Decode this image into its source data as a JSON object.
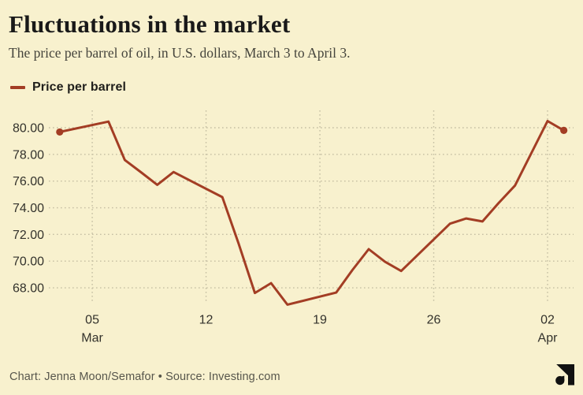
{
  "header": {
    "title": "Fluctuations in the market",
    "subtitle": "The price per barrel of oil, in U.S. dollars, March 3 to April 3."
  },
  "legend": {
    "label": "Price per barrel"
  },
  "footer": {
    "credit": "Chart: Jenna Moon/Semafor • Source: Investing.com",
    "logo_icon": "semafor-logo"
  },
  "colors": {
    "background": "#f8f1ce",
    "line": "#a33d24",
    "grid": "#c5bfa3",
    "title_text": "#191919",
    "subtitle_text": "#45443c",
    "axis_text": "#33322c",
    "footer_text": "#57564c",
    "logo": "#111111"
  },
  "chart_data": {
    "type": "line",
    "title": "Fluctuations in the market",
    "subtitle": "The price per barrel of oil, in U.S. dollars, March 3 to April 3.",
    "xlabel": "",
    "ylabel": "",
    "grid": true,
    "legend_position": "top-left",
    "markers": "first-and-last-point",
    "x_range": [
      "Mar 3",
      "Apr 3"
    ],
    "ylim": [
      66.5,
      81
    ],
    "y_ticks": [
      {
        "value": 80,
        "label": "80.00"
      },
      {
        "value": 78,
        "label": "78.00"
      },
      {
        "value": 76,
        "label": "76.00"
      },
      {
        "value": 74,
        "label": "74.00"
      },
      {
        "value": 72,
        "label": "72.00"
      },
      {
        "value": 70,
        "label": "70.00"
      },
      {
        "value": 68,
        "label": "68.00"
      }
    ],
    "x_ticks": [
      {
        "day": 2,
        "label": "05",
        "month": "Mar"
      },
      {
        "day": 9,
        "label": "12"
      },
      {
        "day": 16,
        "label": "19"
      },
      {
        "day": 23,
        "label": "26"
      },
      {
        "day": 30,
        "label": "02",
        "month": "Apr"
      }
    ],
    "series": [
      {
        "name": "Price per barrel",
        "points": [
          {
            "date": "Mar 3",
            "day": 0,
            "value": 79.68
          },
          {
            "date": "Mar 6",
            "day": 3,
            "value": 80.46
          },
          {
            "date": "Mar 7",
            "day": 4,
            "value": 77.58
          },
          {
            "date": "Mar 8",
            "day": 5,
            "value": 76.66
          },
          {
            "date": "Mar 9",
            "day": 6,
            "value": 75.72
          },
          {
            "date": "Mar 10",
            "day": 7,
            "value": 76.68
          },
          {
            "date": "Mar 13",
            "day": 10,
            "value": 74.8
          },
          {
            "date": "Mar 14",
            "day": 11,
            "value": 71.33
          },
          {
            "date": "Mar 15",
            "day": 12,
            "value": 67.61
          },
          {
            "date": "Mar 16",
            "day": 13,
            "value": 68.35
          },
          {
            "date": "Mar 17",
            "day": 14,
            "value": 66.74
          },
          {
            "date": "Mar 20",
            "day": 17,
            "value": 67.64
          },
          {
            "date": "Mar 21",
            "day": 18,
            "value": 69.33
          },
          {
            "date": "Mar 22",
            "day": 19,
            "value": 70.9
          },
          {
            "date": "Mar 23",
            "day": 20,
            "value": 69.96
          },
          {
            "date": "Mar 24",
            "day": 21,
            "value": 69.26
          },
          {
            "date": "Mar 27",
            "day": 24,
            "value": 72.81
          },
          {
            "date": "Mar 28",
            "day": 25,
            "value": 73.2
          },
          {
            "date": "Mar 29",
            "day": 26,
            "value": 72.97
          },
          {
            "date": "Mar 30",
            "day": 27,
            "value": 74.37
          },
          {
            "date": "Mar 31",
            "day": 28,
            "value": 75.67
          },
          {
            "date": "Apr 2",
            "day": 30,
            "value": 80.5
          },
          {
            "date": "Apr 3",
            "day": 31,
            "value": 79.8
          }
        ]
      }
    ]
  }
}
